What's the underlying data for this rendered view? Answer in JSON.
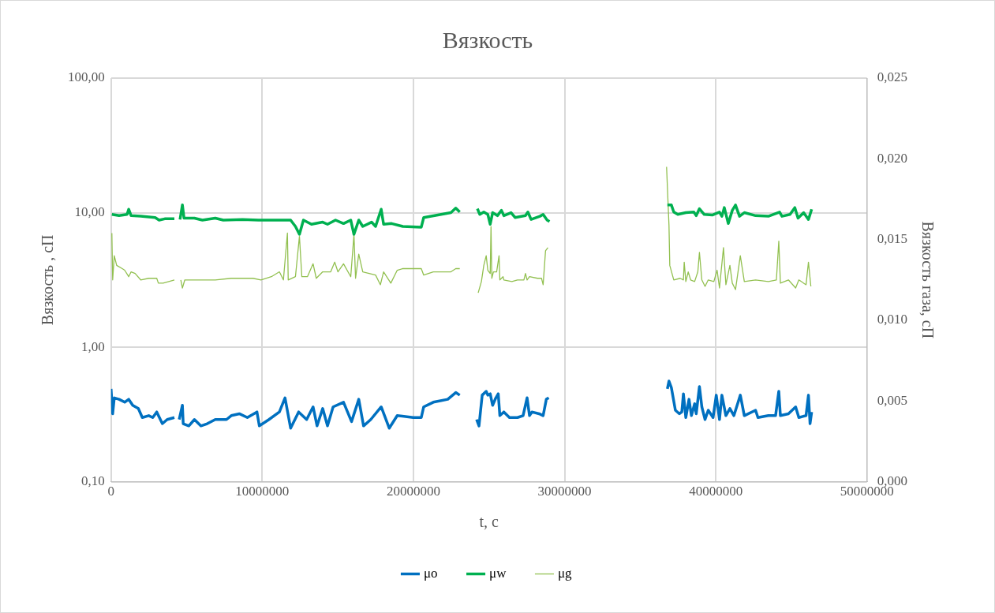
{
  "chart_data": {
    "type": "line",
    "title": "Вязкость",
    "xlabel": "t, с",
    "ylabel": "Вязкость , сП",
    "y2label": "Вязкость газа, сП",
    "log": "y",
    "grid": true,
    "legend": "bottom",
    "marker": "none",
    "line_style": "solid",
    "xlim": [
      0,
      50000000
    ],
    "xticks": [
      0,
      10000000,
      20000000,
      30000000,
      40000000,
      50000000
    ],
    "ylim": [
      0.1,
      100
    ],
    "yticks": [
      {
        "value": 0.1,
        "label": "0,10"
      },
      {
        "value": 1,
        "label": "1,00"
      },
      {
        "value": 10,
        "label": "10,00"
      },
      {
        "value": 100,
        "label": "100,00"
      }
    ],
    "y2lim": [
      0,
      0.025
    ],
    "y2ticks": [
      {
        "value": 0,
        "label": "0,000"
      },
      {
        "value": 0.005,
        "label": "0,005"
      },
      {
        "value": 0.01,
        "label": "0,010"
      },
      {
        "value": 0.015,
        "label": "0,015"
      },
      {
        "value": 0.02,
        "label": "0,020"
      },
      {
        "value": 0.025,
        "label": "0,025"
      }
    ],
    "series": [
      {
        "name": "μo",
        "color": "#0070c0",
        "x": [
          0,
          106000,
          212000,
          530000,
          901000,
          1167000,
          1432000,
          1803000,
          2068000,
          2492000,
          2757000,
          3022000,
          3393000,
          3712000,
          4189000,
          4400000,
          4507000,
          4719000,
          4772000,
          5143000,
          5514000,
          5938000,
          6363000,
          6893000,
          7635000,
          7953000,
          8484000,
          9014000,
          9650000,
          9809000,
          10445000,
          11135000,
          11506000,
          11877000,
          12407000,
          12937000,
          13362000,
          13627000,
          13998000,
          14316000,
          14687000,
          15376000,
          15907000,
          16384000,
          16702000,
          17179000,
          17868000,
          18399000,
          18929000,
          19989000,
          20520000,
          20679000,
          21315000,
          22269000,
          22799000,
          23065000,
          23600000,
          24178000,
          24337000,
          24549000,
          24814000,
          24920000,
          25079000,
          25238000,
          25451000,
          25610000,
          25716000,
          25981000,
          26352000,
          26882000,
          27253000,
          27518000,
          27677000,
          27837000,
          28314000,
          28579000,
          28791000,
          28950000,
          33000000,
          36797000,
          36903000,
          37062000,
          37327000,
          37593000,
          37752000,
          37858000,
          38017000,
          38229000,
          38388000,
          38600000,
          38706000,
          38918000,
          39077000,
          39289000,
          39501000,
          39820000,
          40032000,
          40244000,
          40403000,
          40668000,
          40933000,
          41198000,
          41622000,
          41887000,
          42630000,
          42789000,
          43478000,
          43955000,
          44167000,
          44273000,
          44804000,
          45281000,
          45493000,
          45970000,
          46129000,
          46235000,
          46341000
        ],
        "values": [
          0.49,
          0.32,
          0.42,
          0.41,
          0.39,
          0.41,
          0.37,
          0.35,
          0.3,
          0.31,
          0.3,
          0.33,
          0.27,
          0.29,
          0.3,
          null,
          0.29,
          0.37,
          0.27,
          0.26,
          0.29,
          0.26,
          0.27,
          0.29,
          0.29,
          0.31,
          0.32,
          0.3,
          0.33,
          0.26,
          0.29,
          0.33,
          0.42,
          0.25,
          0.33,
          0.29,
          0.36,
          0.26,
          0.35,
          0.26,
          0.36,
          0.39,
          0.28,
          0.41,
          0.26,
          0.29,
          0.36,
          0.25,
          0.31,
          0.3,
          0.3,
          0.36,
          0.39,
          0.41,
          0.46,
          0.44,
          null,
          0.29,
          0.26,
          0.44,
          0.47,
          0.44,
          0.45,
          0.37,
          0.42,
          0.45,
          0.31,
          0.33,
          0.3,
          0.3,
          0.31,
          0.42,
          0.31,
          0.33,
          0.32,
          0.31,
          0.41,
          0.42,
          null,
          0.49,
          0.56,
          0.5,
          0.34,
          0.32,
          0.33,
          0.45,
          0.3,
          0.41,
          0.31,
          0.38,
          0.32,
          0.51,
          0.36,
          0.29,
          0.34,
          0.3,
          0.44,
          0.29,
          0.44,
          0.31,
          0.35,
          0.31,
          0.44,
          0.31,
          0.34,
          0.3,
          0.31,
          0.31,
          0.47,
          0.31,
          0.32,
          0.36,
          0.3,
          0.31,
          0.44,
          0.27,
          0.33
        ]
      },
      {
        "name": "μw",
        "color": "#00b050",
        "x": [
          53000,
          530000,
          1060000,
          1166000,
          1326000,
          1962000,
          2916000,
          3181000,
          3552000,
          4189000,
          4400000,
          4560000,
          4719000,
          4825000,
          5514000,
          6045000,
          6893000,
          7423000,
          8696000,
          9756000,
          10445000,
          11347000,
          11877000,
          12195000,
          12460000,
          12725000,
          13255000,
          13998000,
          14316000,
          14846000,
          15376000,
          15854000,
          16066000,
          16384000,
          16649000,
          17232000,
          17497000,
          17868000,
          18027000,
          18557000,
          19299000,
          20520000,
          20679000,
          22481000,
          22799000,
          23065000,
          23600000,
          24231000,
          24390000,
          24655000,
          24920000,
          25079000,
          25238000,
          25557000,
          25822000,
          25981000,
          26458000,
          26723000,
          27412000,
          27571000,
          27784000,
          28367000,
          28579000,
          28844000,
          29003000,
          33000000,
          36797000,
          37062000,
          37221000,
          37487000,
          38017000,
          38547000,
          38706000,
          38918000,
          39236000,
          39766000,
          40244000,
          40403000,
          40562000,
          40827000,
          41092000,
          41304000,
          41569000,
          41887000,
          42630000,
          43478000,
          44220000,
          44379000,
          44910000,
          45228000,
          45440000,
          45811000,
          46129000,
          46341000
        ],
        "values": [
          9.7,
          9.5,
          9.7,
          10.6,
          9.5,
          9.4,
          9.2,
          8.8,
          9,
          9,
          null,
          8.9,
          11.4,
          9.1,
          9.1,
          8.8,
          9.1,
          8.8,
          8.9,
          8.8,
          8.8,
          8.8,
          8.8,
          7.9,
          6.9,
          8.8,
          8.2,
          8.5,
          8.2,
          8.8,
          8.3,
          8.8,
          6.9,
          8.8,
          7.9,
          8.5,
          7.9,
          10.6,
          8.2,
          8.3,
          7.9,
          7.8,
          9.2,
          10,
          10.8,
          10.1,
          null,
          10.7,
          9.7,
          10.1,
          9.7,
          8.2,
          10,
          9.5,
          10.4,
          9.5,
          10,
          9.2,
          9.5,
          10.1,
          8.9,
          9.4,
          9.7,
          8.8,
          8.6,
          null,
          11.4,
          11.4,
          10.1,
          9.7,
          10,
          10.1,
          9.5,
          10.7,
          9.7,
          9.6,
          10.1,
          9.4,
          10.9,
          8.3,
          10.4,
          11.4,
          9.4,
          10,
          9.5,
          9.4,
          10.1,
          9.4,
          9.7,
          10.9,
          9.1,
          10,
          8.9,
          10.6
        ]
      },
      {
        "name": "μg",
        "color": "#92c050",
        "axis": "y2",
        "x": [
          53000,
          106000,
          212000,
          371000,
          742000,
          901000,
          1167000,
          1326000,
          1591000,
          1962000,
          2492000,
          3022000,
          3128000,
          3446000,
          4189000,
          4400000,
          4613000,
          4719000,
          4878000,
          5514000,
          5938000,
          6893000,
          7953000,
          8696000,
          9385000,
          9915000,
          10604000,
          11135000,
          11400000,
          11665000,
          11718000,
          12195000,
          12460000,
          12619000,
          12990000,
          13362000,
          13574000,
          13998000,
          14528000,
          14793000,
          15005000,
          15376000,
          15854000,
          16066000,
          16172000,
          16384000,
          16649000,
          17497000,
          17815000,
          18027000,
          18505000,
          18929000,
          19300000,
          20520000,
          20679000,
          21315000,
          22481000,
          22799000,
          23065000,
          23600000,
          24284000,
          24496000,
          24655000,
          24814000,
          24920000,
          25079000,
          25132000,
          25185000,
          25291000,
          25504000,
          25663000,
          25716000,
          25928000,
          25981000,
          26511000,
          26882000,
          27306000,
          27412000,
          27518000,
          27677000,
          28207000,
          28472000,
          28579000,
          28738000,
          28897000,
          33000000,
          36744000,
          36903000,
          36956000,
          37221000,
          37646000,
          37858000,
          37911000,
          38017000,
          38176000,
          38335000,
          38600000,
          38812000,
          38918000,
          39077000,
          39289000,
          39501000,
          39872000,
          40085000,
          40244000,
          40509000,
          40668000,
          40933000,
          41092000,
          41304000,
          41622000,
          41887000,
          42630000,
          43478000,
          44008000,
          44167000,
          44273000,
          44804000,
          45281000,
          45493000,
          45970000,
          46129000,
          46288000
        ],
        "values": [
          0.0154,
          0.0125,
          0.014,
          0.0134,
          0.0132,
          0.0131,
          0.0127,
          0.013,
          0.0129,
          0.0125,
          0.0126,
          0.0126,
          0.0123,
          0.0123,
          0.0125,
          null,
          0.0125,
          0.012,
          0.0125,
          0.0125,
          0.0125,
          0.0125,
          0.0126,
          0.0126,
          0.0126,
          0.0125,
          0.0127,
          0.013,
          0.0125,
          0.0154,
          0.0125,
          0.0127,
          0.0152,
          0.0127,
          0.0127,
          0.0135,
          0.0126,
          0.013,
          0.013,
          0.0136,
          0.013,
          0.0135,
          0.0127,
          0.0153,
          0.0126,
          0.0141,
          0.013,
          0.0128,
          0.0122,
          0.013,
          0.0123,
          0.0131,
          0.0132,
          0.0132,
          0.0128,
          0.013,
          0.013,
          0.0132,
          0.0132,
          null,
          0.0117,
          0.0124,
          0.0134,
          0.014,
          0.0131,
          0.0129,
          0.0158,
          0.0126,
          0.013,
          0.013,
          0.014,
          0.0125,
          0.0127,
          0.0125,
          0.0124,
          0.0125,
          0.0125,
          0.0129,
          0.0125,
          0.0127,
          0.0126,
          0.0126,
          0.0122,
          0.0143,
          0.0145,
          null,
          0.0195,
          0.0159,
          0.0134,
          0.0125,
          0.0126,
          0.0125,
          0.0136,
          0.0124,
          0.013,
          0.0125,
          0.0124,
          0.013,
          0.0142,
          0.0125,
          0.0121,
          0.0125,
          0.0124,
          0.0131,
          0.012,
          0.0145,
          0.0122,
          0.0134,
          0.0123,
          0.0119,
          0.014,
          0.0124,
          0.0125,
          0.0124,
          0.0125,
          0.0149,
          0.0123,
          0.0125,
          0.012,
          0.0125,
          0.0122,
          0.0136,
          0.0121
        ]
      }
    ]
  }
}
